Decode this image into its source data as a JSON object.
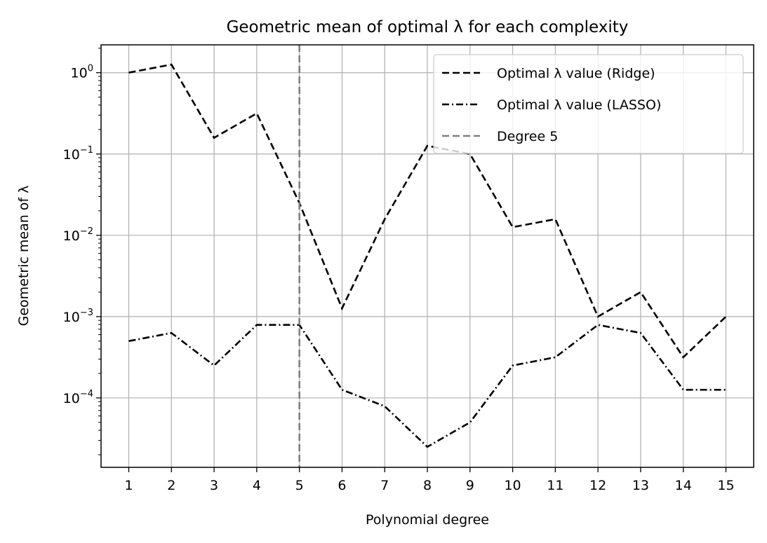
{
  "chart_data": {
    "type": "line",
    "title": "Geometric mean of optimal λ for each complexity",
    "xlabel": "Polynomial degree",
    "ylabel": "Geometric mean of λ",
    "yscale": "log",
    "ylim": [
      1.4e-05,
      2.2
    ],
    "xlim": [
      0.35,
      15.65
    ],
    "grid": true,
    "legend_position": "top-right",
    "x": [
      1,
      2,
      3,
      4,
      5,
      6,
      7,
      8,
      9,
      10,
      11,
      12,
      13,
      14,
      15
    ],
    "x_ticks": [
      "1",
      "2",
      "3",
      "4",
      "5",
      "6",
      "7",
      "8",
      "9",
      "10",
      "11",
      "12",
      "13",
      "14",
      "15"
    ],
    "y_ticks": [
      {
        "value": 1,
        "base": "10",
        "exp": "0"
      },
      {
        "value": 0.1,
        "base": "10",
        "exp": "−1"
      },
      {
        "value": 0.01,
        "base": "10",
        "exp": "−2"
      },
      {
        "value": 0.001,
        "base": "10",
        "exp": "−3"
      },
      {
        "value": 0.0001,
        "base": "10",
        "exp": "−4"
      }
    ],
    "series": [
      {
        "name": "Optimal λ value (Ridge)",
        "style": "dashed",
        "color": "#000000",
        "values": [
          1.0,
          1.26,
          0.158,
          0.316,
          0.025,
          0.00126,
          0.0158,
          0.126,
          0.1,
          0.0126,
          0.0158,
          0.001,
          0.002,
          0.000316,
          0.001
        ]
      },
      {
        "name": "Optimal λ value (LASSO)",
        "style": "dashdot",
        "color": "#000000",
        "values": [
          0.0005,
          0.00063,
          0.00025,
          0.00079,
          0.00079,
          0.000126,
          7.9e-05,
          2.5e-05,
          5e-05,
          0.00025,
          0.000316,
          0.00079,
          0.00063,
          0.000126,
          0.000126
        ]
      }
    ],
    "vline": {
      "name": "Degree 5",
      "x": 5,
      "color": "#808080",
      "style": "dashed"
    }
  }
}
